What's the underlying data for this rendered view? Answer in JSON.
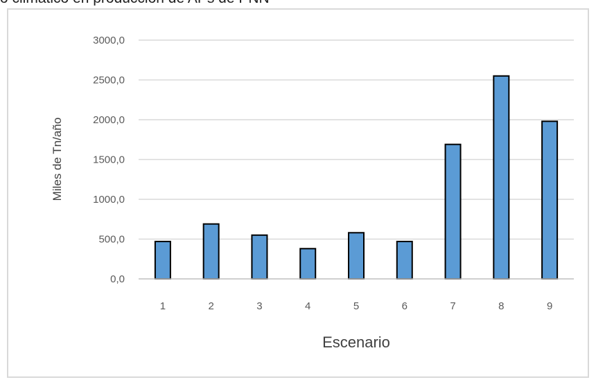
{
  "caption": "o climático en producción de APs de PNN",
  "chart_data": {
    "type": "bar",
    "categories": [
      "1",
      "2",
      "3",
      "4",
      "5",
      "6",
      "7",
      "8",
      "9"
    ],
    "series": [
      {
        "values": [
          470,
          690,
          550,
          380,
          580,
          470,
          1690,
          2550,
          1980
        ]
      }
    ],
    "xlabel": "Escenario",
    "ylabel": "Miles de Tn/año",
    "ylim": [
      0,
      3000
    ],
    "yticks": [
      "0,0",
      "500,0",
      "1000,0",
      "1500,0",
      "2000,0",
      "2500,0",
      "3000,0"
    ],
    "grid": true,
    "colors": {
      "bar": "#5b9bd5",
      "bar_border": "#000000",
      "grid": "#d9d9d9"
    }
  }
}
